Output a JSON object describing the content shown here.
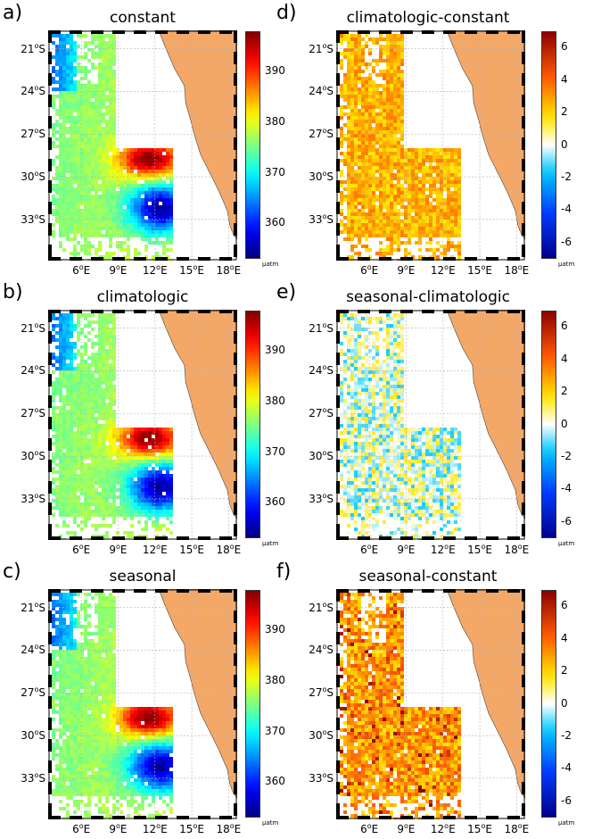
{
  "unit": "μatm",
  "latitude_ticks": [
    "21°S",
    "24°S",
    "27°S",
    "30°S",
    "33°S"
  ],
  "longitude_ticks": [
    "6°E",
    "9°E",
    "12°E",
    "15°E",
    "18°E"
  ],
  "colors": {
    "land": "#f4a868",
    "coast": "#444444",
    "grid": "#b0b0b0"
  },
  "panels": [
    {
      "letter": "a)",
      "title": "constant",
      "kind": "absolute",
      "colorbar": {
        "range": [
          353,
          398
        ],
        "ticks": [
          "390",
          "380",
          "370",
          "360"
        ],
        "tick_values": [
          390,
          380,
          370,
          360
        ],
        "colormap": "jet"
      }
    },
    {
      "letter": "b)",
      "title": "climatologic",
      "kind": "absolute",
      "colorbar": {
        "range": [
          353,
          398
        ],
        "ticks": [
          "390",
          "380",
          "370",
          "360"
        ],
        "tick_values": [
          390,
          380,
          370,
          360
        ],
        "colormap": "jet"
      }
    },
    {
      "letter": "c)",
      "title": "seasonal",
      "kind": "absolute",
      "colorbar": {
        "range": [
          353,
          398
        ],
        "ticks": [
          "390",
          "380",
          "370",
          "360"
        ],
        "tick_values": [
          390,
          380,
          370,
          360
        ],
        "colormap": "jet"
      }
    },
    {
      "letter": "d)",
      "title": "climatologic-constant",
      "kind": "difference",
      "colorbar": {
        "range": [
          -7,
          7
        ],
        "ticks": [
          "6",
          "4",
          "2",
          "0",
          "-2",
          "-4",
          "-6"
        ],
        "tick_values": [
          6,
          4,
          2,
          0,
          -2,
          -4,
          -6
        ],
        "colormap": "diverging"
      }
    },
    {
      "letter": "e)",
      "title": "seasonal-climatologic",
      "kind": "difference",
      "colorbar": {
        "range": [
          -7,
          7
        ],
        "ticks": [
          "6",
          "4",
          "2",
          "0",
          "-2",
          "-4",
          "-6"
        ],
        "tick_values": [
          6,
          4,
          2,
          0,
          -2,
          -4,
          -6
        ],
        "colormap": "diverging"
      }
    },
    {
      "letter": "f)",
      "title": "seasonal-constant",
      "kind": "difference",
      "colorbar": {
        "range": [
          -7,
          7
        ],
        "ticks": [
          "6",
          "4",
          "2",
          "0",
          "-2",
          "-4",
          "-6"
        ],
        "tick_values": [
          6,
          4,
          2,
          0,
          -2,
          -4,
          -6
        ],
        "colormap": "diverging"
      }
    }
  ]
}
